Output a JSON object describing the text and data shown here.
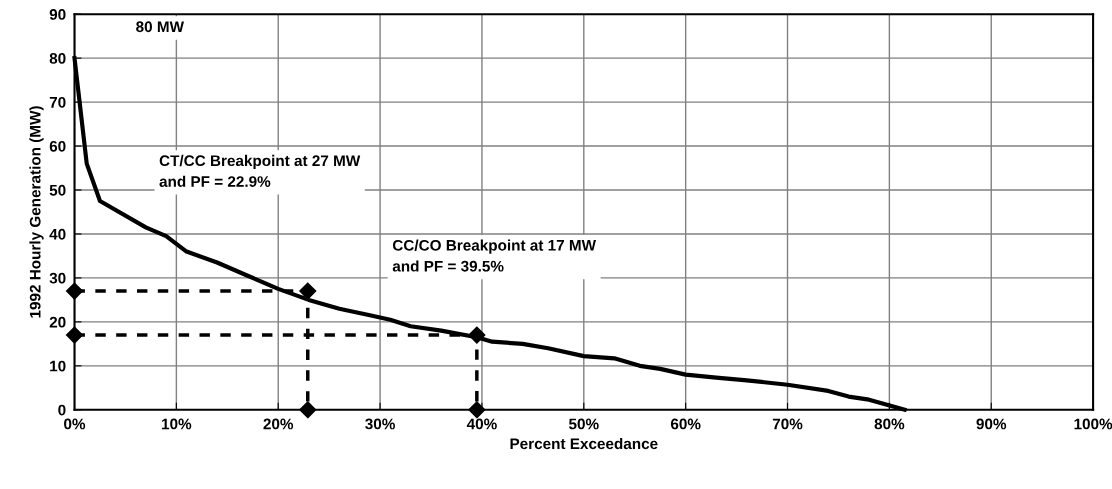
{
  "chart_data": {
    "type": "line",
    "xlabel": "Percent Exceedance",
    "ylabel": "1992 Hourly Generation (MW)",
    "xlim": [
      0,
      100
    ],
    "ylim": [
      0,
      90
    ],
    "xticks": [
      {
        "value": 0,
        "label": "0%"
      },
      {
        "value": 10,
        "label": "10%"
      },
      {
        "value": 20,
        "label": "20%"
      },
      {
        "value": 30,
        "label": "30%"
      },
      {
        "value": 40,
        "label": "40%"
      },
      {
        "value": 50,
        "label": "50%"
      },
      {
        "value": 60,
        "label": "60%"
      },
      {
        "value": 70,
        "label": "70%"
      },
      {
        "value": 80,
        "label": "80%"
      },
      {
        "value": 90,
        "label": "90%"
      },
      {
        "value": 100,
        "label": "100%"
      }
    ],
    "yticks": [
      0,
      10,
      20,
      30,
      40,
      50,
      60,
      70,
      80,
      90
    ],
    "grid": true,
    "series": [
      {
        "color": "#000000",
        "marker": "none",
        "line_style": "solid",
        "x": [
          0,
          0.5,
          1.2,
          2.5,
          7,
          9,
          11,
          14,
          17,
          20,
          23,
          26,
          29,
          31,
          33,
          36,
          39.5,
          41,
          44,
          46.5,
          50,
          53,
          55.5,
          57.5,
          60,
          63,
          66,
          70,
          74,
          76,
          78,
          81.5
        ],
        "values": [
          80,
          70,
          56,
          47.5,
          41.5,
          39.5,
          36,
          33.5,
          30.5,
          27.5,
          25,
          23,
          21.5,
          20.5,
          19,
          18,
          16.5,
          15.5,
          15,
          14,
          12.2,
          11.7,
          10,
          9.3,
          8,
          7.3,
          6.7,
          5.7,
          4.3,
          3,
          2.3,
          0
        ]
      },
      {
        "color": "#000000",
        "marker": "diamond",
        "line_style": "dashed",
        "x": [
          0,
          22.9,
          22.9
        ],
        "values": [
          27,
          27,
          0
        ]
      },
      {
        "color": "#000000",
        "marker": "diamond",
        "line_style": "dashed",
        "x": [
          0,
          39.5,
          39.5
        ],
        "values": [
          17,
          17,
          0
        ]
      }
    ],
    "annotations": [
      "80 MW",
      "CT/CC Breakpoint at 27 MW\nand PF = 22.9%",
      "CC/CO Breakpoint at 17 MW\nand PF = 39.5%"
    ]
  }
}
